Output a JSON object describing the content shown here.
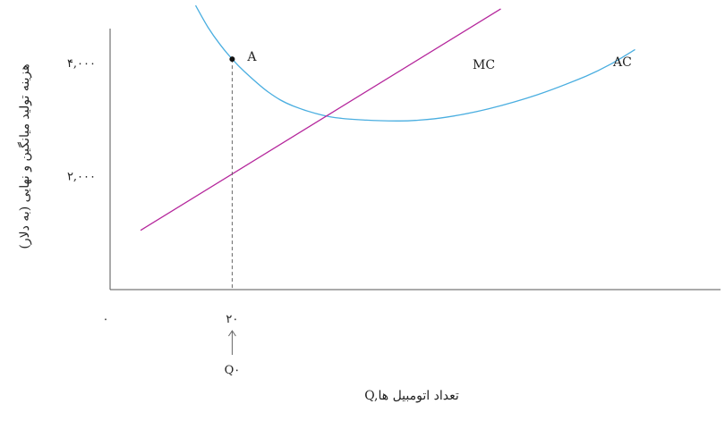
{
  "chart_data": {
    "type": "line",
    "title": "",
    "xlabel": "Q,تعداد اتومبیل ها",
    "ylabel": "هزینه تولید میانگین و نهایی (به دلار)",
    "xlim": [
      0,
      100
    ],
    "ylim": [
      0,
      5000
    ],
    "origin_label": "۰",
    "x_ticks": [
      {
        "value": 20,
        "label": "۲۰"
      }
    ],
    "y_ticks": [
      {
        "value": 2000,
        "label": "۲,۰۰۰"
      },
      {
        "value": 4000,
        "label": "۴,۰۰۰"
      }
    ],
    "series": [
      {
        "name": "AC",
        "color": "#4aaee0",
        "x": [
          14,
          16,
          18,
          20,
          22,
          26,
          30,
          36,
          42,
          47,
          50,
          55,
          62,
          70,
          78,
          82,
          86
        ],
        "y": [
          5030,
          4650,
          4340,
          4080,
          3860,
          3490,
          3250,
          3060,
          3000,
          2985,
          2995,
          3050,
          3200,
          3450,
          3780,
          3990,
          4250
        ]
      },
      {
        "name": "MC",
        "color": "#b5279c",
        "x": [
          5,
          64
        ],
        "y": [
          1050,
          4970
        ]
      }
    ],
    "annotations": [
      {
        "text": "A",
        "x": 20,
        "y": 4080,
        "marker": "point"
      },
      {
        "text": "Q۰",
        "x": 20,
        "kind": "arrow-up"
      }
    ],
    "grid": false,
    "legend": "none"
  }
}
